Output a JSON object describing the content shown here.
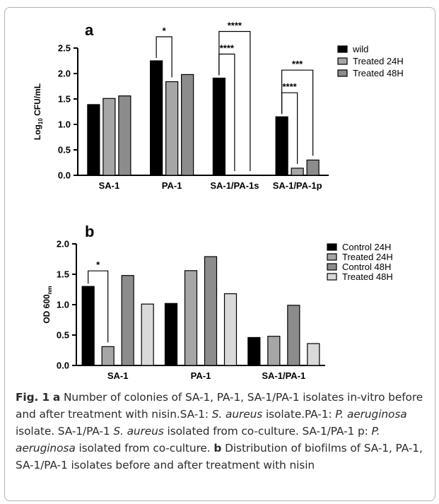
{
  "chart_data": [
    {
      "panel_label": "a",
      "type": "bar",
      "ylabel_main": "Log",
      "ylabel_sub": "10",
      "ylabel_tail": " CFU/mL",
      "ylim": [
        0,
        2.5
      ],
      "yticks": [
        "0.0",
        "0.5",
        "1.0",
        "1.5",
        "2.0",
        "2.5"
      ],
      "categories": [
        "SA-1",
        "PA-1",
        "SA-1/PA-1s",
        "SA-1/PA-1p"
      ],
      "series": [
        {
          "name": "wild",
          "values": [
            1.39,
            2.25,
            1.91,
            1.15
          ],
          "color": "#000000"
        },
        {
          "name": "Treated 24H",
          "values": [
            1.51,
            1.84,
            0,
            0.14
          ],
          "color": "#a6a6a6"
        },
        {
          "name": "Treated 48H",
          "values": [
            1.56,
            1.98,
            0,
            0.3
          ],
          "color": "#8c8c8c"
        }
      ],
      "significance": [
        {
          "label": "*",
          "cat": 1,
          "from": 0,
          "to": 1
        },
        {
          "label": "****",
          "cat": 2,
          "from": 0,
          "to": 1
        },
        {
          "label": "****",
          "cat": 2,
          "from": 0,
          "to": 2
        },
        {
          "label": "****",
          "cat": 3,
          "from": 0,
          "to": 1
        },
        {
          "label": "***",
          "cat": 3,
          "from": 0,
          "to": 2
        }
      ],
      "legend_position": "top-right"
    },
    {
      "panel_label": "b",
      "type": "bar",
      "ylabel_main": "OD 600",
      "ylabel_sub": "nm",
      "ylim": [
        0,
        2.0
      ],
      "yticks": [
        "0.0",
        "0.5",
        "1.0",
        "1.5",
        "2.0"
      ],
      "categories": [
        "SA-1",
        "PA-1",
        "SA-1/PA-1"
      ],
      "series": [
        {
          "name": "Control 24H",
          "values": [
            1.3,
            1.02,
            0.46
          ],
          "color": "#000000"
        },
        {
          "name": "Treated 24H",
          "values": [
            0.31,
            1.56,
            0.48
          ],
          "color": "#a6a6a6"
        },
        {
          "name": "Control 48H",
          "values": [
            1.48,
            1.79,
            0.99
          ],
          "color": "#8c8c8c"
        },
        {
          "name": "Treated 48H",
          "values": [
            1.01,
            1.18,
            0.36
          ],
          "color": "#d9d9d9"
        }
      ],
      "significance": [
        {
          "label": "*",
          "cat": 0,
          "from": 0,
          "to": 1
        }
      ],
      "legend_position": "top-right"
    }
  ],
  "caption": {
    "fig": "Fig. 1",
    "a_label": "a",
    "t1": " Number of colonies of SA-1, PA-1, SA-1/PA-1 isolates in-vitro before and after treatment with nisin.SA-1: ",
    "i1": "S. aureus",
    "t2": " isolate.PA-1: ",
    "i2": "P. aeruginosa",
    "t3": " isolate. SA-1/PA-1 ",
    "i3": "S. aureus",
    "t4": " isolated from co-culture. SA-1/PA-1 p: ",
    "i4": "P. aeruginosa",
    "t5": " isolated from co-culture. ",
    "b_label": "b",
    "t6": " Distribution of biofilms of SA-1, PA-1, SA-1/PA-1 isolates before and after treatment with nisin"
  }
}
